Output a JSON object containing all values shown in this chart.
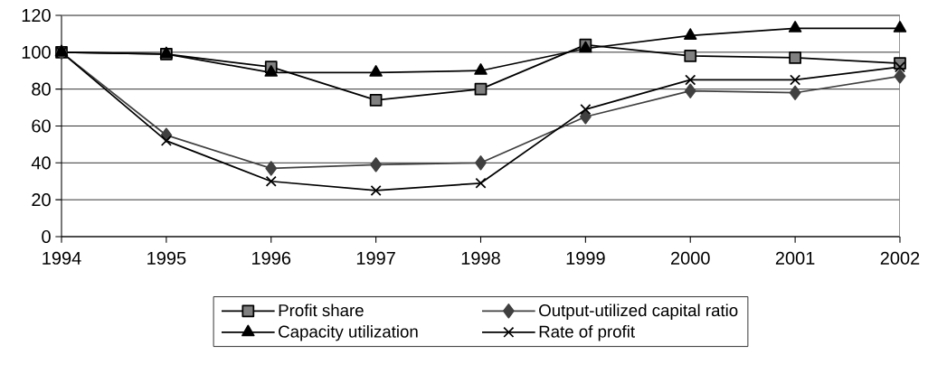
{
  "chart_data": {
    "type": "line",
    "categories": [
      "1994",
      "1995",
      "1996",
      "1997",
      "1998",
      "1999",
      "2000",
      "2001",
      "2002"
    ],
    "series": [
      {
        "name": "Profit share",
        "color": "#808080",
        "marker": "square",
        "values": [
          100,
          99,
          92,
          74,
          80,
          104,
          98,
          97,
          94
        ]
      },
      {
        "name": "Output-utilized capital ratio",
        "color": "#404040",
        "marker": "diamond",
        "values": [
          100,
          55,
          37,
          39,
          40,
          65,
          79,
          78,
          87
        ]
      },
      {
        "name": "Capacity utilization",
        "color": "#000000",
        "marker": "triangle",
        "values": [
          100,
          99,
          89,
          89,
          90,
          102,
          109,
          113,
          113
        ]
      },
      {
        "name": "Rate of profit",
        "color": "#000000",
        "marker": "cross",
        "values": [
          100,
          52,
          30,
          25,
          29,
          69,
          85,
          85,
          92
        ]
      }
    ],
    "ylim": [
      0,
      120
    ],
    "yticks": [
      0,
      20,
      40,
      60,
      80,
      100,
      120
    ],
    "grid": "y",
    "legend": "bottom",
    "line_style": "solid"
  }
}
